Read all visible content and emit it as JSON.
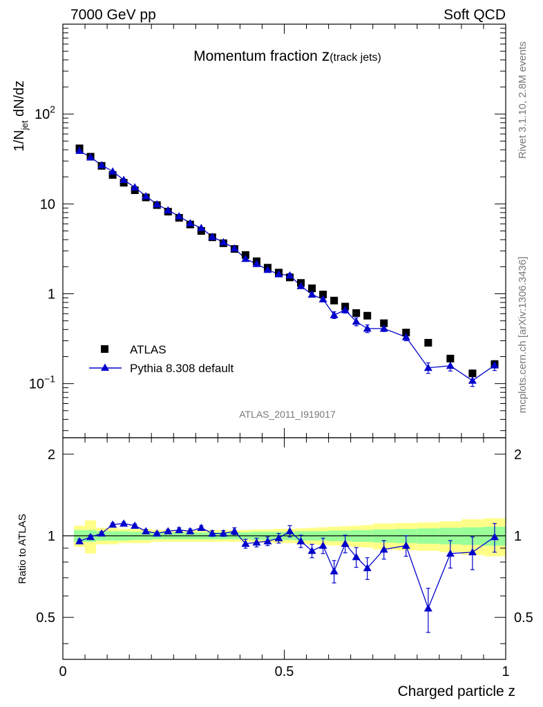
{
  "header": {
    "left": "7000 GeV pp",
    "right": "Soft QCD"
  },
  "title": {
    "main": "Momentum fraction ",
    "var": "z",
    "sub": "(track jets)"
  },
  "side_labels": {
    "rivet": "Rivet 3.1.10,  2.8M events",
    "mcplots": "mcplots.cern.ch [arXiv:1306.3436]"
  },
  "analysis_id": "ATLAS_2011_I919017",
  "colors": {
    "data": "#000000",
    "mc": "#0000cc",
    "band_inner": "#99ff99",
    "band_outer": "#ffff88"
  },
  "legend": {
    "position": "lower-left",
    "entries": [
      {
        "label": "ATLAS"
      },
      {
        "label": "Pythia 8.308 default"
      }
    ]
  },
  "chart_data": [
    {
      "type": "scatter",
      "panel": "main",
      "xlabel": "",
      "ylabel_main": "1/N",
      "ylabel_sub": "jet",
      "ylabel_rest": " dN/dz",
      "xlim": [
        0,
        1
      ],
      "ylim": [
        0.025,
        1000
      ],
      "log_y": true,
      "yticks": [
        {
          "v": 0.1,
          "base": "10",
          "exp": "−1"
        },
        {
          "v": 1,
          "base": "1",
          "exp": ""
        },
        {
          "v": 10,
          "base": "10",
          "exp": ""
        },
        {
          "v": 100,
          "base": "10",
          "exp": "2"
        }
      ],
      "x": [
        0.0375,
        0.0625,
        0.0875,
        0.1125,
        0.1375,
        0.1625,
        0.1875,
        0.2125,
        0.2375,
        0.2625,
        0.2875,
        0.3125,
        0.3375,
        0.3625,
        0.3875,
        0.4125,
        0.4375,
        0.4625,
        0.4875,
        0.5125,
        0.5375,
        0.5625,
        0.5875,
        0.6125,
        0.6375,
        0.6625,
        0.6875,
        0.725,
        0.775,
        0.825,
        0.875,
        0.925,
        0.975
      ],
      "series": [
        {
          "name": "ATLAS",
          "marker": "square",
          "values": [
            41.5,
            33.5,
            26.5,
            21.0,
            17.2,
            14.2,
            11.8,
            9.7,
            8.2,
            7.0,
            5.9,
            5.0,
            4.25,
            3.65,
            3.15,
            2.7,
            2.3,
            1.95,
            1.72,
            1.52,
            1.32,
            1.15,
            0.98,
            0.84,
            0.72,
            0.61,
            0.57,
            0.47,
            0.37,
            0.285,
            0.19,
            0.13,
            0.165
          ],
          "err": [
            0,
            0,
            0,
            0,
            0,
            0,
            0,
            0,
            0,
            0,
            0,
            0,
            0,
            0,
            0,
            0,
            0,
            0,
            0,
            0,
            0,
            0,
            0,
            0,
            0,
            0,
            0,
            0,
            0,
            0,
            0,
            0,
            0
          ]
        },
        {
          "name": "Pythia 8.308 default",
          "marker": "triangle",
          "values": [
            39.0,
            33.0,
            27.0,
            23.0,
            18.5,
            15.3,
            12.2,
            9.9,
            8.5,
            7.3,
            6.1,
            5.4,
            4.3,
            3.75,
            3.2,
            2.45,
            2.15,
            1.85,
            1.65,
            1.6,
            1.22,
            0.98,
            0.87,
            0.58,
            0.66,
            0.49,
            0.41,
            0.41,
            0.33,
            0.15,
            0.158,
            0.108,
            0.16
          ],
          "err": [
            0.5,
            0.4,
            0.4,
            0.3,
            0.3,
            0.25,
            0.2,
            0.15,
            0.13,
            0.12,
            0.1,
            0.1,
            0.08,
            0.07,
            0.07,
            0.1,
            0.09,
            0.07,
            0.07,
            0.08,
            0.07,
            0.06,
            0.06,
            0.05,
            0.05,
            0.05,
            0.04,
            0.03,
            0.03,
            0.02,
            0.02,
            0.015,
            0.02
          ]
        }
      ]
    },
    {
      "type": "scatter",
      "panel": "ratio",
      "xlabel": "Charged particle z",
      "ylabel": "Ratio to ATLAS",
      "xlim": [
        0,
        1
      ],
      "ylim": [
        0.35,
        2.3
      ],
      "log_y": true,
      "yticks": [
        0.5,
        1,
        2
      ],
      "xticks": [
        {
          "v": 0,
          "label": "0"
        },
        {
          "v": 0.5,
          "label": "0.5"
        },
        {
          "v": 1,
          "label": "1"
        }
      ],
      "reference": 1,
      "bins": [
        [
          0.025,
          0.05
        ],
        [
          0.05,
          0.075
        ],
        [
          0.075,
          0.1
        ],
        [
          0.1,
          0.125
        ],
        [
          0.125,
          0.15
        ],
        [
          0.15,
          0.175
        ],
        [
          0.175,
          0.2
        ],
        [
          0.2,
          0.225
        ],
        [
          0.225,
          0.25
        ],
        [
          0.25,
          0.275
        ],
        [
          0.275,
          0.3
        ],
        [
          0.3,
          0.325
        ],
        [
          0.325,
          0.35
        ],
        [
          0.35,
          0.375
        ],
        [
          0.375,
          0.4
        ],
        [
          0.4,
          0.425
        ],
        [
          0.425,
          0.45
        ],
        [
          0.45,
          0.475
        ],
        [
          0.475,
          0.5
        ],
        [
          0.5,
          0.525
        ],
        [
          0.525,
          0.55
        ],
        [
          0.55,
          0.575
        ],
        [
          0.575,
          0.6
        ],
        [
          0.6,
          0.625
        ],
        [
          0.625,
          0.65
        ],
        [
          0.65,
          0.675
        ],
        [
          0.675,
          0.7
        ],
        [
          0.7,
          0.75
        ],
        [
          0.75,
          0.8
        ],
        [
          0.8,
          0.85
        ],
        [
          0.85,
          0.9
        ],
        [
          0.9,
          0.95
        ],
        [
          0.95,
          1.0
        ]
      ],
      "band_inner": [
        0.05,
        0.05,
        0.04,
        0.04,
        0.04,
        0.035,
        0.035,
        0.03,
        0.03,
        0.03,
        0.03,
        0.03,
        0.03,
        0.03,
        0.03,
        0.03,
        0.035,
        0.035,
        0.035,
        0.035,
        0.04,
        0.04,
        0.04,
        0.045,
        0.045,
        0.05,
        0.05,
        0.055,
        0.06,
        0.065,
        0.07,
        0.075,
        0.08
      ],
      "band_outer": [
        0.09,
        0.14,
        0.07,
        0.07,
        0.06,
        0.06,
        0.06,
        0.05,
        0.05,
        0.05,
        0.05,
        0.05,
        0.05,
        0.05,
        0.05,
        0.05,
        0.055,
        0.055,
        0.06,
        0.06,
        0.065,
        0.07,
        0.075,
        0.08,
        0.085,
        0.09,
        0.095,
        0.11,
        0.115,
        0.12,
        0.13,
        0.15,
        0.16
      ],
      "x": [
        0.0375,
        0.0625,
        0.0875,
        0.1125,
        0.1375,
        0.1625,
        0.1875,
        0.2125,
        0.2375,
        0.2625,
        0.2875,
        0.3125,
        0.3375,
        0.3625,
        0.3875,
        0.4125,
        0.4375,
        0.4625,
        0.4875,
        0.5125,
        0.5375,
        0.5625,
        0.5875,
        0.6125,
        0.6375,
        0.6625,
        0.6875,
        0.725,
        0.775,
        0.825,
        0.875,
        0.925,
        0.975
      ],
      "series": [
        {
          "name": "Pythia 8.308 default",
          "marker": "triangle",
          "values": [
            0.955,
            0.99,
            1.02,
            1.1,
            1.11,
            1.09,
            1.04,
            1.02,
            1.04,
            1.05,
            1.04,
            1.07,
            1.02,
            1.02,
            1.04,
            0.935,
            0.945,
            0.955,
            0.98,
            1.04,
            0.955,
            0.88,
            0.92,
            0.74,
            0.935,
            0.835,
            0.76,
            0.89,
            0.92,
            0.54,
            0.86,
            0.87,
            0.99
          ],
          "err": [
            0.015,
            0.015,
            0.015,
            0.015,
            0.015,
            0.015,
            0.015,
            0.015,
            0.015,
            0.02,
            0.02,
            0.02,
            0.025,
            0.025,
            0.03,
            0.035,
            0.035,
            0.035,
            0.04,
            0.05,
            0.05,
            0.05,
            0.06,
            0.07,
            0.07,
            0.07,
            0.07,
            0.07,
            0.08,
            0.1,
            0.1,
            0.12,
            0.12
          ]
        }
      ]
    }
  ]
}
